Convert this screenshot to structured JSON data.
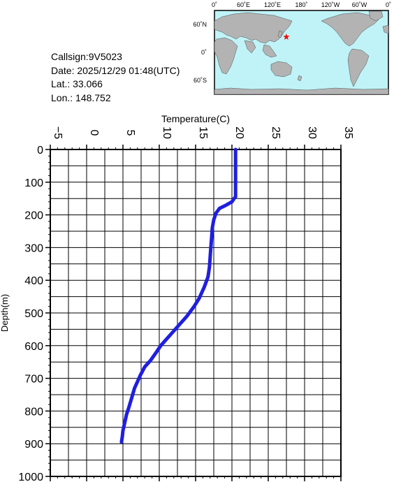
{
  "info": {
    "callsign": "Callsign:9V5023",
    "date": "Date:  2025/12/29 01:48(UTC)",
    "lat": "Lat.:   33.066",
    "lon": "Lon.:   148.752"
  },
  "map": {
    "lon_ticks": [
      "0˚",
      "60˚E",
      "120˚E",
      "180˚",
      "120˚W",
      "60˚W",
      "0˚"
    ],
    "lat_ticks": [
      "60˚N",
      "0˚",
      "60˚S"
    ],
    "station_lat": 33.066,
    "station_lon": 148.752,
    "ocean_color": "#bff3f7",
    "land_color": "#b3b3b3",
    "marker_color": "#ff0000",
    "marker_icon": "star-icon"
  },
  "chart_data": {
    "type": "line",
    "xlabel": "Temperature(C)",
    "ylabel": "Depth(m)",
    "xlim": [
      -5,
      35
    ],
    "ylim": [
      0,
      1000
    ],
    "y_inverted": true,
    "x_ticks": [
      -5,
      0,
      5,
      10,
      15,
      20,
      25,
      30,
      35
    ],
    "y_ticks": [
      0,
      100,
      200,
      300,
      400,
      500,
      600,
      700,
      800,
      900,
      1000
    ],
    "grid": true,
    "line_color": "#1f1fe0",
    "series": [
      {
        "x": [
          20.5,
          20.5,
          20.5,
          20.5,
          20.3,
          20.0,
          19.2,
          18.3,
          17.8,
          17.5,
          17.3,
          17.2,
          17.1,
          17.0,
          16.9,
          16.7,
          16.2,
          15.5,
          14.8,
          13.8,
          12.6,
          11.8,
          11.0,
          10.2,
          9.6,
          8.8,
          8.0,
          7.4,
          7.2,
          6.6,
          6.2,
          5.8,
          5.5,
          5.2,
          5.0,
          4.9,
          4.8
        ],
        "y": [
          0,
          50,
          100,
          145,
          150,
          160,
          170,
          180,
          195,
          215,
          240,
          270,
          300,
          330,
          360,
          390,
          420,
          455,
          480,
          510,
          540,
          560,
          580,
          600,
          620,
          645,
          665,
          690,
          700,
          730,
          760,
          790,
          810,
          840,
          860,
          880,
          895
        ]
      }
    ]
  }
}
